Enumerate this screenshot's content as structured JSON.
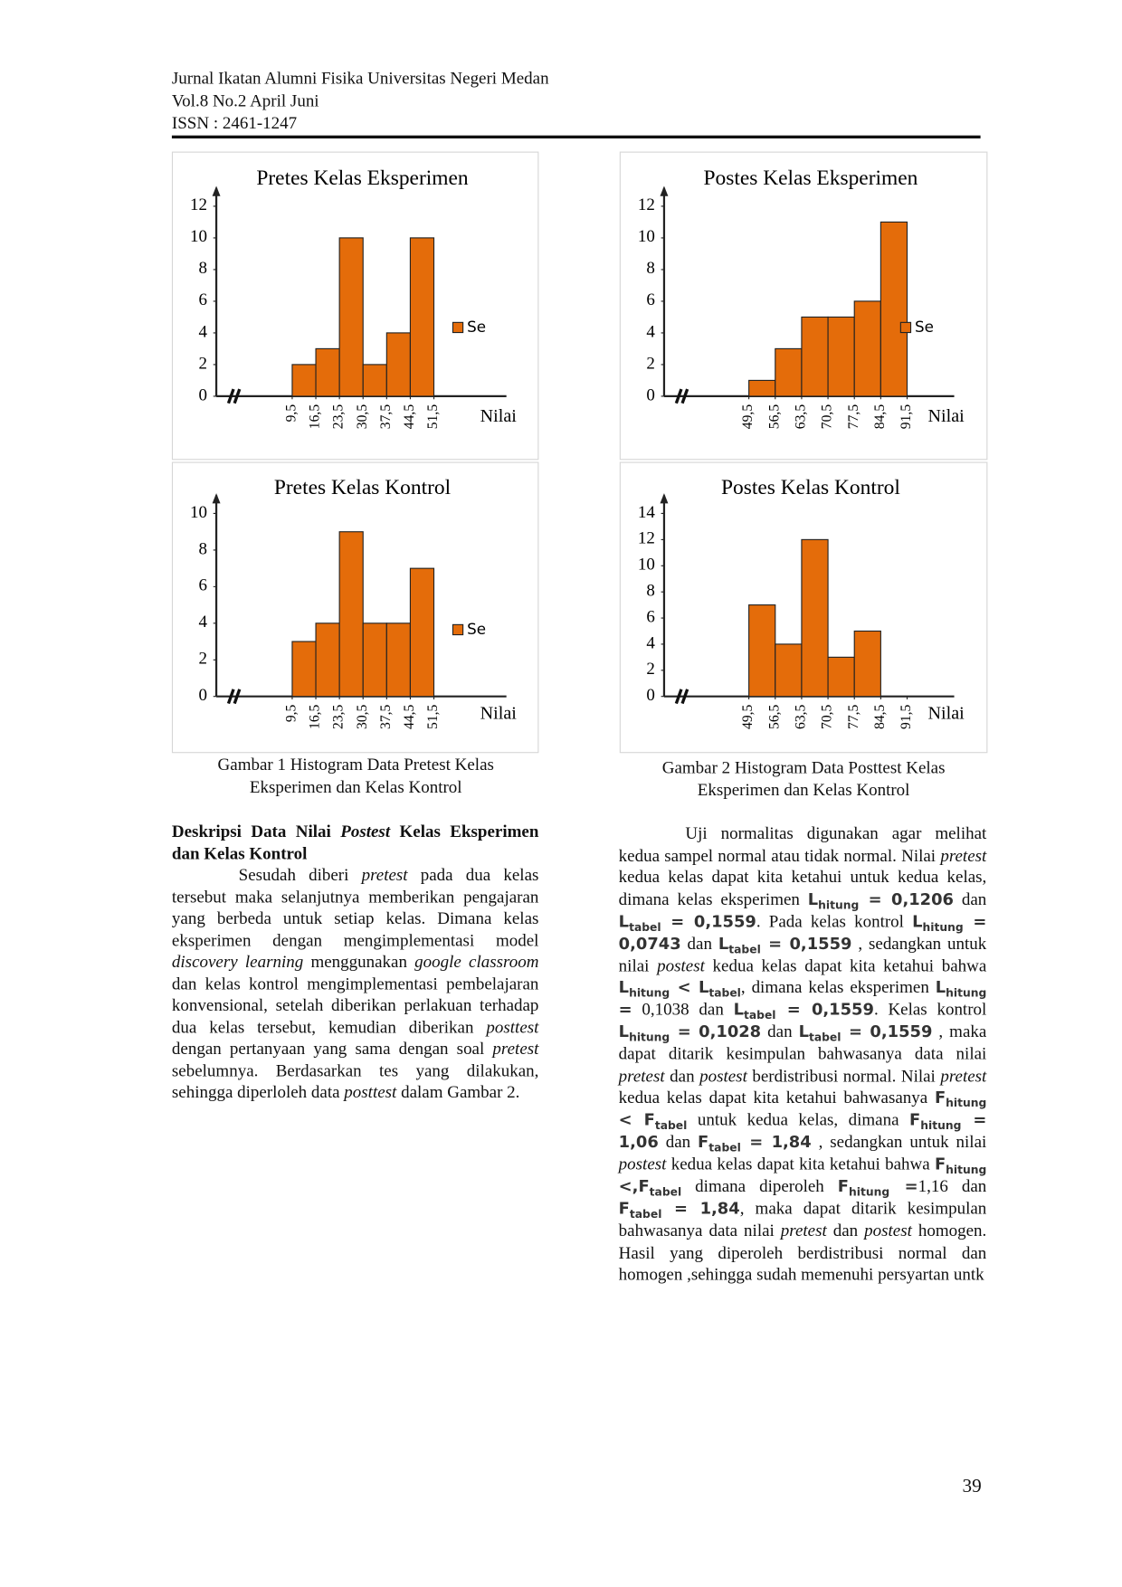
{
  "header": {
    "lines": [
      "Jurnal Ikatan Alumni Fisika Universitas Negeri Medan",
      "Vol.8 No.2 April Juni",
      "ISSN : 2461-1247"
    ]
  },
  "chart_data": [
    {
      "type": "histogram",
      "title": "Pretes Kelas Eksperimen",
      "xlabel": "Nilai",
      "series": [
        {
          "name": "Se",
          "color": "#e46c0a",
          "values": [
            2,
            3,
            10,
            2,
            4,
            10
          ]
        }
      ],
      "bins": [
        9.5,
        16.5,
        23.5,
        30.5,
        37.5,
        44.5,
        51.5
      ],
      "xticks": [
        {
          "value": 9.5,
          "label": "9,5"
        },
        {
          "value": 16.5,
          "label": "16,5"
        },
        {
          "value": 23.5,
          "label": "23,5"
        },
        {
          "value": 30.5,
          "label": "30,5"
        },
        {
          "value": 37.5,
          "label": "37,5"
        },
        {
          "value": 44.5,
          "label": "44,5"
        },
        {
          "value": 51.5,
          "label": "51,5"
        }
      ],
      "xlim": [
        -13,
        73
      ],
      "ylim": [
        0,
        12
      ],
      "yticks": [
        0,
        2,
        4,
        6,
        8,
        10,
        12
      ],
      "legend": "right"
    },
    {
      "type": "histogram",
      "title": "Postes Kelas Eksperimen",
      "xlabel": "Nilai",
      "series": [
        {
          "name": "Se",
          "color": "#e46c0a",
          "values": [
            1,
            3,
            5,
            5,
            6,
            11
          ]
        }
      ],
      "bins": [
        49.5,
        56.5,
        63.5,
        70.5,
        77.5,
        84.5,
        91.5
      ],
      "xticks": [
        {
          "value": 49.5,
          "label": "49,5"
        },
        {
          "value": 56.5,
          "label": "56,5"
        },
        {
          "value": 63.5,
          "label": "63,5"
        },
        {
          "value": 70.5,
          "label": "70,5"
        },
        {
          "value": 77.5,
          "label": "77,5"
        },
        {
          "value": 84.5,
          "label": "84,5"
        },
        {
          "value": 91.5,
          "label": "91,5"
        }
      ],
      "xlim": [
        27,
        104
      ],
      "ylim": [
        0,
        12
      ],
      "yticks": [
        0,
        2,
        4,
        6,
        8,
        10,
        12
      ],
      "legend": "right"
    },
    {
      "type": "histogram",
      "title": "Pretes Kelas Kontrol",
      "xlabel": "Nilai",
      "series": [
        {
          "name": "Se",
          "color": "#e46c0a",
          "values": [
            3,
            4,
            9,
            4,
            4,
            7
          ]
        }
      ],
      "bins": [
        9.5,
        16.5,
        23.5,
        30.5,
        37.5,
        44.5,
        51.5
      ],
      "xticks": [
        {
          "value": 9.5,
          "label": "9,5"
        },
        {
          "value": 16.5,
          "label": "16,5"
        },
        {
          "value": 23.5,
          "label": "23,5"
        },
        {
          "value": 30.5,
          "label": "30,5"
        },
        {
          "value": 37.5,
          "label": "37,5"
        },
        {
          "value": 44.5,
          "label": "44,5"
        },
        {
          "value": 51.5,
          "label": "51,5"
        }
      ],
      "xlim": [
        -13,
        73
      ],
      "ylim": [
        0,
        10
      ],
      "yticks": [
        0,
        2,
        4,
        6,
        8,
        10
      ],
      "legend": "right"
    },
    {
      "type": "histogram",
      "title": "Postes Kelas Kontrol",
      "xlabel": "Nilai",
      "series": [
        {
          "name": "Se",
          "color": "#e46c0a",
          "values": [
            7,
            4,
            12,
            3,
            5
          ]
        }
      ],
      "bins": [
        49.5,
        56.5,
        63.5,
        70.5,
        77.5,
        84.5
      ],
      "xticks": [
        {
          "value": 49.5,
          "label": "49,5"
        },
        {
          "value": 56.5,
          "label": "56,5"
        },
        {
          "value": 63.5,
          "label": "63,5"
        },
        {
          "value": 70.5,
          "label": "70,5"
        },
        {
          "value": 77.5,
          "label": "77,5"
        },
        {
          "value": 84.5,
          "label": "84,5"
        },
        {
          "value": 91.5,
          "label": "91,5"
        }
      ],
      "xlim": [
        27,
        104
      ],
      "ylim": [
        0,
        14
      ],
      "yticks": [
        0,
        2,
        4,
        6,
        8,
        10,
        12,
        14
      ],
      "legend": false
    }
  ],
  "captions": [
    [
      "Gambar 1 Histogram Data Pretest Kelas",
      "Eksperimen dan Kelas Kontrol"
    ],
    [
      "Gambar 2 Histogram Data Posttest Kelas",
      "Eksperimen dan Kelas Kontrol"
    ]
  ],
  "left_column": [
    [
      {
        "bold": "Deskripsi Data Nilai "
      },
      {
        "bolditalic": "Postest"
      },
      {
        "bold": " Kelas Eksperimen dan Kelas Kontrol"
      }
    ],
    [
      "Sesudah diberi ",
      {
        "italic": "pretest"
      },
      " pada dua kelas tersebut maka selanjutnya memberikan pengajaran yang berbeda untuk setiap kelas. Dimana kelas eksperimen dengan mengimplementasi model ",
      {
        "italic": "discovery learning"
      },
      " menggunakan ",
      {
        "italic": "google classroom"
      },
      " dan kelas kontrol mengimplementasi pembelajaran konvensional, setelah diberikan perlakuan terhadap dua kelas tersebut, kemudian diberikan ",
      {
        "italic": "posttest"
      },
      " dengan pertanyaan yang sama dengan soal ",
      {
        "italic": "pretest"
      },
      " sebelumnya. Berdasarkan tes yang dilakukan, sehingga diperloleh data ",
      {
        "italic": "posttest"
      },
      " dalam  Gambar 2."
    ]
  ],
  "right_column": [
    [
      "Uji normalitas digunakan agar melihat kedua sampel normal atau tidak normal. Nilai ",
      {
        "italic": "pretest"
      },
      " kedua kelas dapat kita ketahui untuk kedua kelas, dimana kelas eksperimen ",
      {
        "sym": "L",
        "sub": "hitung",
        "rest": " = 0,1206"
      },
      " dan ",
      {
        "sym": "L",
        "sub": "tabel",
        "rest": " = 0,1559"
      },
      ". Pada kelas kontrol ",
      {
        "sym": "L",
        "sub": "hitung",
        "rest": " = 0,0743"
      },
      " dan ",
      {
        "sym": "L",
        "sub": "tabel",
        "rest": " = 0,1559"
      },
      " , sedangkan untuk nilai ",
      {
        "italic": "postest"
      },
      " kedua kelas dapat kita ketahui bahwa ",
      {
        "sym": "L",
        "sub": "hitung",
        "rest": " < "
      },
      {
        "sym": "L",
        "sub": "tabel"
      },
      ", dimana kelas eksperimen ",
      {
        "sym": "L",
        "sub": "hitung",
        "rest": " ="
      },
      " 0,1038 dan ",
      {
        "sym": "L",
        "sub": "tabel",
        "rest": " = 0,1559"
      },
      ". Kelas kontrol ",
      {
        "sym": "L",
        "sub": "hitung",
        "rest": " = 0,1028"
      },
      " dan ",
      {
        "sym": "L",
        "sub": "tabel",
        "rest": " = 0,1559"
      },
      " , maka dapat ditarik kesimpulan bahwasanya data nilai ",
      {
        "italic": "pretest"
      },
      "  dan ",
      {
        "italic": "postest"
      },
      " berdistribusi normal. Nilai ",
      {
        "italic": "pretest"
      },
      " kedua kelas dapat kita ketahui bahwasanya ",
      {
        "sym": "F",
        "sub": "hitung",
        "rest": " < "
      },
      {
        "sym": "F",
        "sub": "tabel"
      },
      " untuk kedua kelas, dimana ",
      {
        "sym": "F",
        "sub": "hitung",
        "rest": " = 1,06"
      },
      " dan ",
      {
        "sym": "F",
        "sub": "tabel",
        "rest": " = 1,84"
      },
      " , sedangkan untuk nilai ",
      {
        "italic": "postest"
      },
      "  kedua kelas dapat kita ketahui bahwa ",
      {
        "sym": "F",
        "sub": "hitung",
        "rest": " <,"
      },
      {
        "sym": "F",
        "sub": "tabel"
      },
      " dimana diperoleh ",
      {
        "sym": "F",
        "sub": "hitung",
        "rest": " ="
      },
      "1,16 dan ",
      {
        "sym": "F",
        "sub": "tabel",
        "rest": " = 1,84"
      },
      ", maka dapat ditarik kesimpulan bahwasanya data nilai ",
      {
        "italic": "pretest"
      },
      "  dan ",
      {
        "italic": "postest"
      },
      " homogen. Hasil yang diperoleh berdistribusi normal dan homogen ,sehingga sudah memenuhi  persyartan untk"
    ]
  ],
  "page_number": "39"
}
